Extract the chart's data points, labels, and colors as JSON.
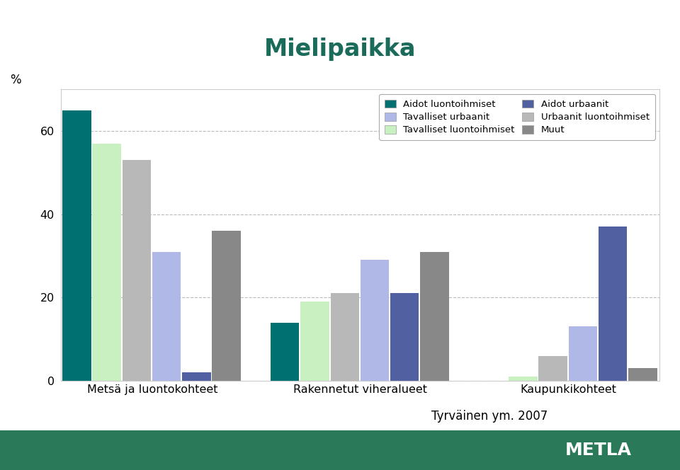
{
  "title": "Mielipaikka",
  "title_color": "#1a6b5a",
  "categories": [
    "Metsä ja luontokohteet",
    "Rakennetut viheralueet",
    "Kaupunkikohteet"
  ],
  "series": [
    {
      "name": "Aidot luontoihmiset",
      "color": "#007070",
      "values": [
        65,
        14,
        0
      ]
    },
    {
      "name": "Tavalliset luontoihmiset",
      "color": "#c8f0c0",
      "values": [
        57,
        19,
        1
      ]
    },
    {
      "name": "Urbaanit luontoihmiset",
      "color": "#b8b8b8",
      "values": [
        53,
        21,
        6
      ]
    },
    {
      "name": "Tavalliset urbaanit",
      "color": "#b0b8e8",
      "values": [
        31,
        29,
        13
      ]
    },
    {
      "name": "Aidot urbaanit",
      "color": "#5060a0",
      "values": [
        2,
        21,
        37
      ]
    },
    {
      "name": "Muut",
      "color": "#888888",
      "values": [
        36,
        31,
        3
      ]
    }
  ],
  "ylabel": "%",
  "ylim": [
    0,
    70
  ],
  "yticks": [
    0,
    20,
    40,
    60
  ],
  "fig_bg": "#ffffff",
  "chart_bg": "#ffffff",
  "box_color": "#cccccc",
  "grid_color": "#aaaaaa",
  "subtitle": "Tyrväinen ym. 2007",
  "footer_text": "METLA",
  "footer_bg": "#2a7a5a",
  "bar_width": 0.11,
  "bar_gap": 0.005
}
